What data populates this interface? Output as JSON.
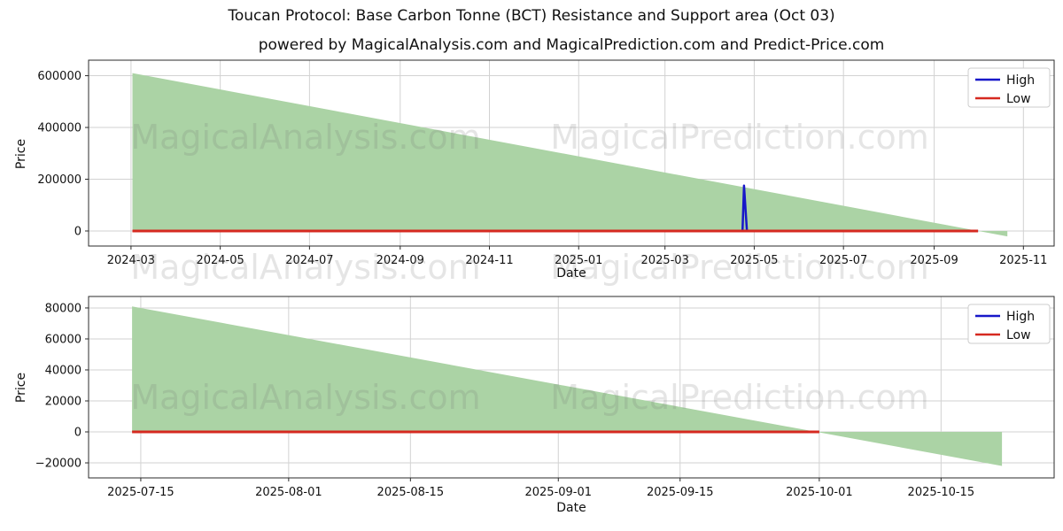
{
  "figure": {
    "title": "Toucan Protocol: Base Carbon Tonne (BCT) Resistance and Support area (Oct 03)",
    "subtitle": "powered by MagicalAnalysis.com and MagicalPrediction.com and Predict-Price.com",
    "watermark_left": "MagicalAnalysis.com",
    "watermark_right": "MagicalPrediction.com",
    "colors": {
      "high": "#1717c9",
      "low": "#d62920",
      "band": "#abd3a5",
      "grid": "#d2d2d2",
      "spine": "#2b2b2b",
      "text": "#111111"
    }
  },
  "chart_data": [
    {
      "type": "area",
      "name": "bct-resistance-support-full-history",
      "xlabel": "Date",
      "ylabel": "Price",
      "xlim": [
        "2024-02-01",
        "2025-11-22"
      ],
      "ylim": [
        -58200,
        660000
      ],
      "grid": true,
      "legend_position": "upper right",
      "legend": [
        {
          "label": "High",
          "color": "high"
        },
        {
          "label": "Low",
          "color": "low"
        }
      ],
      "x_ticks": [
        {
          "date": "2024-03-01",
          "label": "2024-03"
        },
        {
          "date": "2024-05-01",
          "label": "2024-05"
        },
        {
          "date": "2024-07-01",
          "label": "2024-07"
        },
        {
          "date": "2024-09-01",
          "label": "2024-09"
        },
        {
          "date": "2024-11-01",
          "label": "2024-11"
        },
        {
          "date": "2025-01-01",
          "label": "2025-01"
        },
        {
          "date": "2025-03-01",
          "label": "2025-03"
        },
        {
          "date": "2025-05-01",
          "label": "2025-05"
        },
        {
          "date": "2025-07-01",
          "label": "2025-07"
        },
        {
          "date": "2025-09-01",
          "label": "2025-09"
        },
        {
          "date": "2025-11-01",
          "label": "2025-11"
        }
      ],
      "y_ticks": [
        {
          "value": 0,
          "label": "0"
        },
        {
          "value": 200000,
          "label": "200000"
        },
        {
          "value": 400000,
          "label": "400000"
        },
        {
          "value": 600000,
          "label": "600000"
        }
      ],
      "series": [
        {
          "name": "resistance-support-area",
          "kind": "fill_to_zero",
          "color": "band",
          "points": [
            [
              "2024-03-02",
              610000
            ],
            [
              "2025-10-21",
              -21000
            ]
          ]
        },
        {
          "name": "High",
          "kind": "line",
          "color": "high",
          "width": 2.5,
          "points": [
            [
              "2024-03-02",
              0
            ],
            [
              "2025-04-23",
              0
            ],
            [
              "2025-04-24",
              175000
            ],
            [
              "2025-04-26",
              0
            ],
            [
              "2025-10-01",
              0
            ]
          ]
        },
        {
          "name": "Low",
          "kind": "line",
          "color": "low",
          "width": 3,
          "points": [
            [
              "2024-03-02",
              0
            ],
            [
              "2025-10-01",
              0
            ]
          ]
        }
      ]
    },
    {
      "type": "area",
      "name": "bct-resistance-support-recent-zoom",
      "xlabel": "Date",
      "ylabel": "Price",
      "xlim": [
        "2025-07-09",
        "2025-10-28"
      ],
      "ylim": [
        -29700,
        87400
      ],
      "grid": true,
      "legend_position": "upper right",
      "legend": [
        {
          "label": "High",
          "color": "high"
        },
        {
          "label": "Low",
          "color": "low"
        }
      ],
      "x_ticks": [
        {
          "date": "2025-07-15",
          "label": "2025-07-15"
        },
        {
          "date": "2025-08-01",
          "label": "2025-08-01"
        },
        {
          "date": "2025-08-15",
          "label": "2025-08-15"
        },
        {
          "date": "2025-09-01",
          "label": "2025-09-01"
        },
        {
          "date": "2025-09-15",
          "label": "2025-09-15"
        },
        {
          "date": "2025-10-01",
          "label": "2025-10-01"
        },
        {
          "date": "2025-10-15",
          "label": "2025-10-15"
        }
      ],
      "y_ticks": [
        {
          "value": -20000,
          "label": "−20000"
        },
        {
          "value": 0,
          "label": "0"
        },
        {
          "value": 20000,
          "label": "20000"
        },
        {
          "value": 40000,
          "label": "40000"
        },
        {
          "value": 60000,
          "label": "60000"
        },
        {
          "value": 80000,
          "label": "80000"
        }
      ],
      "series": [
        {
          "name": "resistance-support-area",
          "kind": "fill_to_zero",
          "color": "band",
          "points": [
            [
              "2025-07-14",
              81000
            ],
            [
              "2025-10-22",
              -22000
            ]
          ]
        },
        {
          "name": "Low",
          "kind": "line",
          "color": "low",
          "width": 3,
          "points": [
            [
              "2025-07-14",
              0
            ],
            [
              "2025-10-01",
              0
            ]
          ]
        }
      ]
    }
  ]
}
